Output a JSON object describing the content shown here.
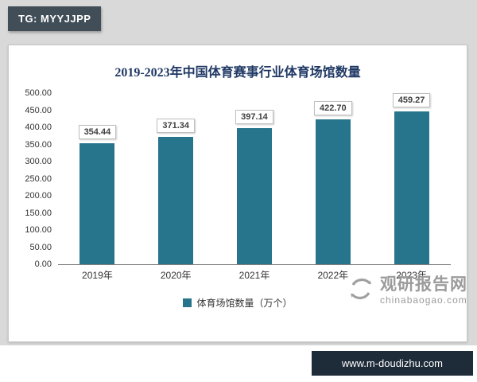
{
  "badge": {
    "label": "TG: MYYJJPP"
  },
  "chart_data": {
    "type": "bar",
    "title": "2019-2023年中国体育赛事行业体育场馆数量",
    "categories": [
      "2019年",
      "2020年",
      "2021年",
      "2022年",
      "2023年"
    ],
    "values": [
      354.44,
      371.34,
      397.14,
      422.7,
      459.27
    ],
    "value_labels": [
      "354.44",
      "371.34",
      "397.14",
      "422.70",
      "459.27"
    ],
    "ylim": [
      0,
      500
    ],
    "yticks": [
      "0.00",
      "50.00",
      "100.00",
      "150.00",
      "200.00",
      "250.00",
      "300.00",
      "350.00",
      "400.00",
      "450.00",
      "500.00"
    ],
    "legend": [
      "体育场馆数量（万个）"
    ],
    "legend_position": "bottom",
    "grid": false,
    "bar_color": "#26758c",
    "title_color": "#1f3864"
  },
  "watermark": {
    "name": "观研报告网",
    "domain": "chinabaogao.com"
  },
  "footer": {
    "url": "www.m-doudizhu.com"
  }
}
